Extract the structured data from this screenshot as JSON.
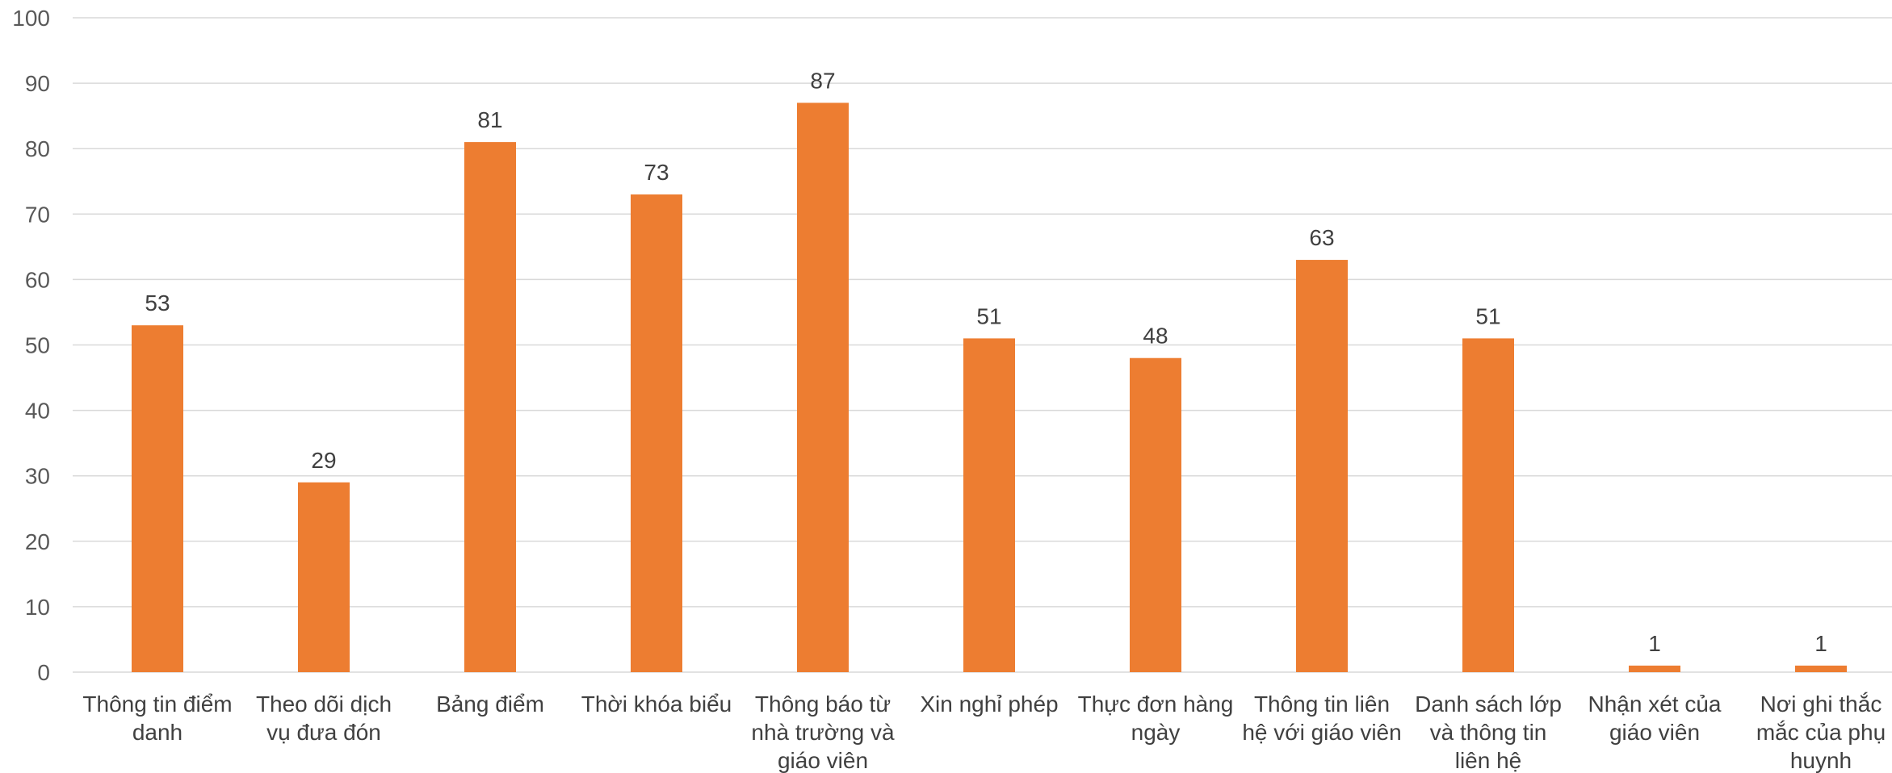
{
  "chart_data": {
    "type": "bar",
    "title": "",
    "xlabel": "",
    "ylabel": "",
    "ylim": [
      0,
      100
    ],
    "yticks": [
      0,
      10,
      20,
      30,
      40,
      50,
      60,
      70,
      80,
      90,
      100
    ],
    "grid": true,
    "legend": "none",
    "bar_color": "#ED7D31",
    "categories": [
      [
        "Thông tin điểm",
        "danh"
      ],
      [
        "Theo dõi dịch",
        "vụ đưa đón"
      ],
      [
        "Bảng điểm"
      ],
      [
        "Thời khóa biểu"
      ],
      [
        "Thông báo từ",
        "nhà trường và",
        "giáo viên"
      ],
      [
        "Xin nghỉ phép"
      ],
      [
        "Thực đơn hàng",
        "ngày"
      ],
      [
        "Thông tin liên",
        "hệ với giáo viên"
      ],
      [
        "Danh sách lớp",
        "và thông tin",
        "liên hệ"
      ],
      [
        "Nhận xét của",
        "giáo viên"
      ],
      [
        "Nơi ghi thắc",
        "mắc của phụ",
        "huynh"
      ]
    ],
    "values": [
      53,
      29,
      81,
      73,
      87,
      51,
      48,
      63,
      51,
      1,
      1
    ]
  }
}
